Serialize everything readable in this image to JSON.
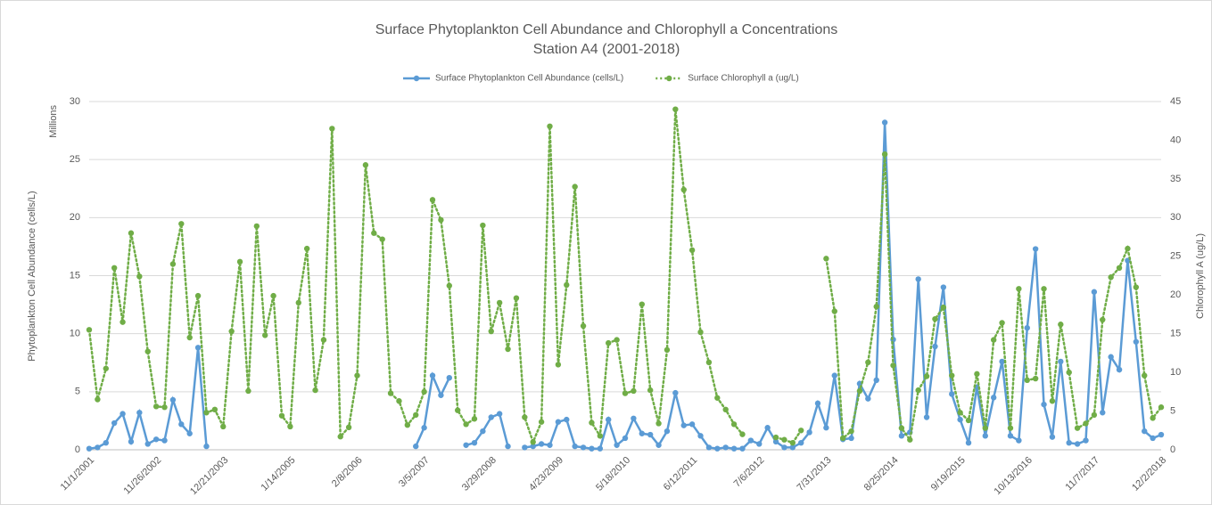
{
  "chart_data": {
    "type": "line",
    "title": "Surface Phytoplankton Cell Abundance and Chlorophyll a Concentrations",
    "subtitle": "Station A4 (2001-2018)",
    "y_label": "Phytoplankton Cell Abundance (cells/L)",
    "y_unit_label": "Millions",
    "y2_label": "Chlorophyll A (ug/L)",
    "categories": [
      "11/1/2001",
      null,
      null,
      null,
      null,
      null,
      null,
      null,
      "11/26/2002",
      null,
      null,
      null,
      null,
      null,
      null,
      null,
      "12/21/2003",
      null,
      null,
      null,
      null,
      null,
      null,
      null,
      "1/14/2005",
      null,
      null,
      null,
      null,
      null,
      null,
      null,
      "2/8/2006",
      null,
      null,
      null,
      null,
      null,
      null,
      null,
      "3/5/2007",
      null,
      null,
      null,
      null,
      null,
      null,
      null,
      "3/29/2008",
      null,
      null,
      null,
      null,
      null,
      null,
      null,
      "4/23/2009",
      null,
      null,
      null,
      null,
      null,
      null,
      null,
      "5/18/2010",
      null,
      null,
      null,
      null,
      null,
      null,
      null,
      "6/12/2011",
      null,
      null,
      null,
      null,
      null,
      null,
      null,
      "7/6/2012",
      null,
      null,
      null,
      null,
      null,
      null,
      null,
      "7/31/2013",
      null,
      null,
      null,
      null,
      null,
      null,
      null,
      "8/25/2014",
      null,
      null,
      null,
      null,
      null,
      null,
      null,
      "9/19/2015",
      null,
      null,
      null,
      null,
      null,
      null,
      null,
      "10/13/2016",
      null,
      null,
      null,
      null,
      null,
      null,
      null,
      "11/7/2017",
      null,
      null,
      null,
      null,
      null,
      null,
      null,
      "12/2/2018"
    ],
    "series": [
      {
        "name": "Surface Phytoplankton Cell Abundance (cells/L)",
        "color": "#5b9bd5",
        "style": "solid",
        "values": [
          0.1,
          0.2,
          0.6,
          2.3,
          3.1,
          0.7,
          3.2,
          0.5,
          0.9,
          0.8,
          4.3,
          2.2,
          1.4,
          8.8,
          0.3,
          null,
          null,
          null,
          null,
          null,
          null,
          null,
          null,
          null,
          null,
          null,
          null,
          null,
          null,
          null,
          null,
          null,
          null,
          null,
          null,
          null,
          null,
          null,
          null,
          0.3,
          1.9,
          6.4,
          4.7,
          6.2,
          null,
          0.4,
          0.6,
          1.6,
          2.8,
          3.1,
          0.3,
          null,
          0.2,
          0.3,
          0.5,
          0.4,
          2.4,
          2.6,
          0.3,
          0.2,
          0.1,
          0.1,
          2.6,
          0.4,
          1,
          2.7,
          1.4,
          1.3,
          0.4,
          1.6,
          4.9,
          2.1,
          2.2,
          1.2,
          0.2,
          0.1,
          0.2,
          0.1,
          0.1,
          0.8,
          0.5,
          1.9,
          0.7,
          0.2,
          0.2,
          0.6,
          1.5,
          4,
          1.9,
          6.4,
          0.9,
          1,
          5.7,
          4.4,
          6,
          28.2,
          9.5,
          1.2,
          1.5,
          14.7,
          2.8,
          8.9,
          14,
          4.8,
          2.6,
          0.6,
          5.4,
          1.2,
          4.5,
          7.6,
          1.2,
          0.8,
          10.5,
          17.3,
          3.9,
          1.1,
          7.6,
          0.6,
          0.5,
          0.8,
          13.6,
          3.2,
          8,
          6.9,
          16.3,
          9.3,
          1.6,
          1,
          1.3
        ]
      },
      {
        "name": "Surface Chlorophyll a (ug/L)",
        "color": "#70ad47",
        "style": "dotted",
        "axis": "y2",
        "values": [
          15.5,
          6.5,
          10.5,
          23.5,
          16.5,
          28,
          22.4,
          12.7,
          5.6,
          5.5,
          24,
          29.2,
          14.5,
          19.9,
          4.8,
          5.2,
          3,
          15.3,
          24.3,
          7.6,
          28.9,
          14.8,
          19.9,
          4.4,
          3,
          19,
          26,
          7.7,
          14.2,
          41.5,
          1.7,
          2.9,
          9.6,
          36.8,
          28,
          27.2,
          7.3,
          6.3,
          3.2,
          4.5,
          7.5,
          32.3,
          29.7,
          21.2,
          5.1,
          3.3,
          4,
          29,
          15.3,
          19,
          13,
          19.6,
          4.2,
          1,
          3.6,
          41.8,
          11,
          21.3,
          34,
          16,
          3.5,
          1.8,
          13.8,
          14.2,
          7.3,
          7.6,
          18.8,
          7.7,
          3.4,
          12.9,
          44,
          33.6,
          25.8,
          15.2,
          11.3,
          6.7,
          5.2,
          3.3,
          2,
          null,
          null,
          null,
          1.6,
          1.3,
          0.9,
          2.5,
          null,
          null,
          24.7,
          17.9,
          1.5,
          2.4,
          7.6,
          11.3,
          18.5,
          38.2,
          10.9,
          2.8,
          1.3,
          7.7,
          9.5,
          16.9,
          18.4,
          9.6,
          4.8,
          3.8,
          9.8,
          2.8,
          14.2,
          16.4,
          2.8,
          20.8,
          9,
          9.2,
          20.8,
          6.3,
          16.2,
          10,
          2.8,
          3.4,
          4.5,
          16.8,
          22.3,
          23.5,
          26,
          21,
          9.6,
          4.1,
          5.5
        ]
      }
    ],
    "ylim": [
      0,
      30
    ],
    "yticks": [
      0,
      5,
      10,
      15,
      20,
      25,
      30
    ],
    "y2lim": [
      0,
      45
    ],
    "y2ticks": [
      0,
      5,
      10,
      15,
      20,
      25,
      30,
      35,
      40,
      45
    ],
    "grid": true,
    "legend": "top"
  }
}
